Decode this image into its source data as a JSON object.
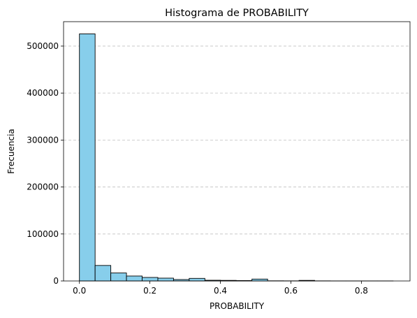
{
  "chart_data": {
    "type": "bar",
    "title": "Histograma de PROBABILITY",
    "xlabel": "PROBABILITY",
    "ylabel": "Frecuencia",
    "xlim": [
      -0.045,
      0.938
    ],
    "ylim": [
      0,
      552000
    ],
    "xticks": [
      0.0,
      0.2,
      0.4,
      0.6,
      0.8
    ],
    "xtick_labels": [
      "0.0",
      "0.2",
      "0.4",
      "0.6",
      "0.8"
    ],
    "yticks": [
      0,
      100000,
      200000,
      300000,
      400000,
      500000
    ],
    "ytick_labels": [
      "0",
      "100000",
      "200000",
      "300000",
      "400000",
      "500000"
    ],
    "grid": {
      "axis": "y",
      "style": "dashed"
    },
    "bar_color": "#87CEEB",
    "edge_color": "#000000",
    "bins": [
      {
        "start": 0.0,
        "end": 0.0445,
        "value": 526000
      },
      {
        "start": 0.0445,
        "end": 0.089,
        "value": 33000
      },
      {
        "start": 0.089,
        "end": 0.1335,
        "value": 17000
      },
      {
        "start": 0.1335,
        "end": 0.178,
        "value": 10500
      },
      {
        "start": 0.178,
        "end": 0.2225,
        "value": 7500
      },
      {
        "start": 0.2225,
        "end": 0.267,
        "value": 6000
      },
      {
        "start": 0.267,
        "end": 0.3115,
        "value": 3000
      },
      {
        "start": 0.3115,
        "end": 0.356,
        "value": 5500
      },
      {
        "start": 0.356,
        "end": 0.4005,
        "value": 1500
      },
      {
        "start": 0.4005,
        "end": 0.445,
        "value": 1200
      },
      {
        "start": 0.445,
        "end": 0.4895,
        "value": 800
      },
      {
        "start": 0.4895,
        "end": 0.534,
        "value": 4000
      },
      {
        "start": 0.534,
        "end": 0.5785,
        "value": 300
      },
      {
        "start": 0.5785,
        "end": 0.623,
        "value": 200
      },
      {
        "start": 0.623,
        "end": 0.6675,
        "value": 1200
      },
      {
        "start": 0.6675,
        "end": 0.712,
        "value": 200
      },
      {
        "start": 0.712,
        "end": 0.7565,
        "value": 100
      },
      {
        "start": 0.7565,
        "end": 0.801,
        "value": 100
      },
      {
        "start": 0.801,
        "end": 0.8455,
        "value": 100
      },
      {
        "start": 0.8455,
        "end": 0.89,
        "value": 100
      }
    ]
  }
}
